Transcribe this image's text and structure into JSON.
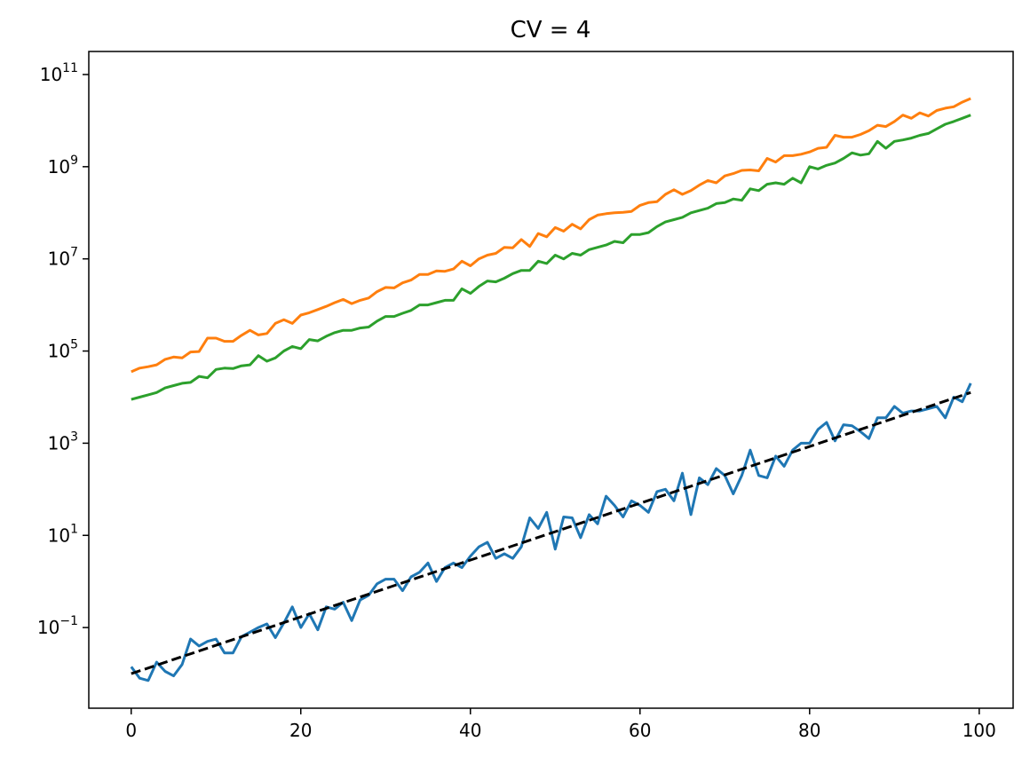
{
  "chart_data": {
    "type": "line",
    "title": "CV = 4",
    "xlabel": "",
    "ylabel": "",
    "xscale": "linear",
    "yscale": "log",
    "xlim": [
      -5,
      104
    ],
    "ylim_log10": [
      -2.75,
      11.5
    ],
    "grid": false,
    "legend": "none",
    "x_ticks": [
      0,
      20,
      40,
      60,
      80,
      100
    ],
    "y_ticks": [
      {
        "base": "10",
        "exp": "−1",
        "log10": -1
      },
      {
        "base": "10",
        "exp": "1",
        "log10": 1
      },
      {
        "base": "10",
        "exp": "3",
        "log10": 3
      },
      {
        "base": "10",
        "exp": "5",
        "log10": 5
      },
      {
        "base": "10",
        "exp": "7",
        "log10": 7
      },
      {
        "base": "10",
        "exp": "9",
        "log10": 9
      },
      {
        "base": "10",
        "exp": "11",
        "log10": 11
      }
    ],
    "x": "integers 0 to 99",
    "series": [
      {
        "color": "#ff7f0e",
        "style": "solid",
        "y_log10": [
          4.55,
          4.63,
          4.66,
          4.7,
          4.82,
          4.87,
          4.85,
          4.98,
          4.99,
          5.28,
          5.28,
          5.21,
          5.21,
          5.34,
          5.45,
          5.35,
          5.38,
          5.6,
          5.68,
          5.6,
          5.78,
          5.83,
          5.9,
          5.97,
          6.05,
          6.12,
          6.03,
          6.1,
          6.15,
          6.29,
          6.38,
          6.37,
          6.48,
          6.54,
          6.66,
          6.66,
          6.74,
          6.73,
          6.78,
          6.95,
          6.85,
          7.0,
          7.08,
          7.12,
          7.25,
          7.24,
          7.42,
          7.27,
          7.55,
          7.48,
          7.68,
          7.6,
          7.75,
          7.65,
          7.85,
          7.95,
          7.98,
          8.0,
          8.01,
          8.03,
          8.16,
          8.22,
          8.24,
          8.4,
          8.5,
          8.4,
          8.48,
          8.6,
          8.7,
          8.65,
          8.8,
          8.85,
          8.92,
          8.93,
          8.91,
          9.18,
          9.1,
          9.24,
          9.24,
          9.27,
          9.32,
          9.4,
          9.42,
          9.68,
          9.64,
          9.64,
          9.7,
          9.78,
          9.9,
          9.87,
          9.98,
          10.12,
          10.05,
          10.17,
          10.1,
          10.22,
          10.27,
          10.3,
          10.4,
          10.48
        ]
      },
      {
        "color": "#2ca02c",
        "style": "solid",
        "y_log10": [
          3.95,
          4.0,
          4.05,
          4.1,
          4.2,
          4.25,
          4.3,
          4.32,
          4.45,
          4.42,
          4.6,
          4.63,
          4.62,
          4.68,
          4.7,
          4.9,
          4.78,
          4.85,
          5.0,
          5.1,
          5.05,
          5.25,
          5.22,
          5.32,
          5.4,
          5.45,
          5.45,
          5.5,
          5.52,
          5.65,
          5.75,
          5.75,
          5.82,
          5.88,
          6.0,
          6.0,
          6.05,
          6.1,
          6.1,
          6.35,
          6.25,
          6.4,
          6.52,
          6.5,
          6.58,
          6.68,
          6.75,
          6.75,
          6.95,
          6.9,
          7.08,
          7.0,
          7.12,
          7.08,
          7.2,
          7.25,
          7.3,
          7.38,
          7.35,
          7.53,
          7.53,
          7.57,
          7.7,
          7.8,
          7.85,
          7.9,
          8.0,
          8.05,
          8.1,
          8.2,
          8.22,
          8.3,
          8.27,
          8.52,
          8.48,
          8.62,
          8.65,
          8.62,
          8.75,
          8.65,
          9.0,
          8.95,
          9.03,
          9.08,
          9.18,
          9.3,
          9.25,
          9.28,
          9.55,
          9.4,
          9.55,
          9.58,
          9.62,
          9.68,
          9.72,
          9.82,
          9.92,
          9.98,
          10.05,
          10.12
        ]
      },
      {
        "color": "#1f77b4",
        "style": "solid",
        "y_log10": [
          -1.85,
          -2.1,
          -2.15,
          -1.75,
          -1.95,
          -2.05,
          -1.8,
          -1.25,
          -1.4,
          -1.3,
          -1.25,
          -1.55,
          -1.55,
          -1.2,
          -1.1,
          -1.0,
          -0.92,
          -1.22,
          -0.9,
          -0.55,
          -1.0,
          -0.7,
          -1.05,
          -0.55,
          -0.6,
          -0.45,
          -0.85,
          -0.4,
          -0.3,
          -0.05,
          0.05,
          0.05,
          -0.2,
          0.1,
          0.2,
          0.4,
          0.0,
          0.3,
          0.4,
          0.3,
          0.55,
          0.75,
          0.85,
          0.5,
          0.6,
          0.5,
          0.75,
          1.38,
          1.15,
          1.5,
          0.7,
          1.4,
          1.38,
          0.95,
          1.45,
          1.25,
          1.85,
          1.65,
          1.4,
          1.75,
          1.65,
          1.5,
          1.95,
          2.0,
          1.75,
          2.35,
          1.45,
          2.25,
          2.1,
          2.45,
          2.3,
          1.9,
          2.3,
          2.85,
          2.3,
          2.25,
          2.72,
          2.5,
          2.85,
          3.0,
          3.0,
          3.3,
          3.45,
          3.05,
          3.4,
          3.38,
          3.25,
          3.1,
          3.55,
          3.55,
          3.8,
          3.65,
          3.7,
          3.7,
          3.75,
          3.8,
          3.55,
          4.0,
          3.9,
          4.3
        ]
      },
      {
        "color": "#000000",
        "style": "dashed",
        "y_log10_start": -2.0,
        "y_log10_end": 4.1
      }
    ]
  }
}
